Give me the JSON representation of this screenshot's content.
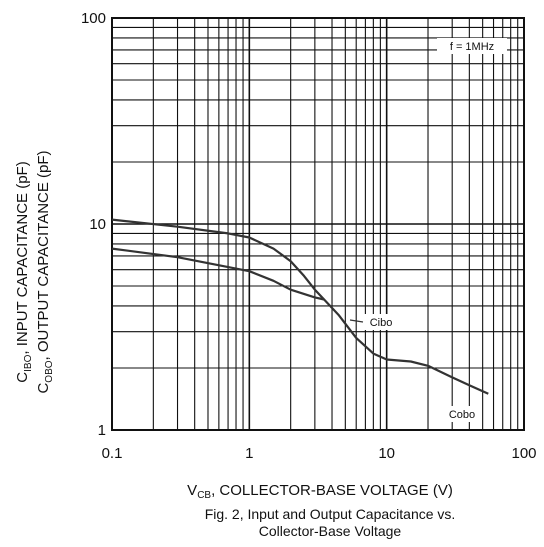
{
  "chart_data": {
    "type": "line",
    "x_scale": "log",
    "y_scale": "log",
    "xlim": [
      0.1,
      100
    ],
    "ylim": [
      1,
      100
    ],
    "x_tick_labels": [
      "0.1",
      "1",
      "10",
      "100"
    ],
    "y_tick_labels": [
      "1",
      "10",
      "100"
    ],
    "ylabel": {
      "line1": {
        "prefix": "C",
        "sub": "IBO",
        "suffix": ", INPUT CAPACITANCE (pF)"
      },
      "line2": {
        "prefix": "C",
        "sub": "OBO",
        "suffix": ", OUTPUT CAPACITANCE (pF)"
      }
    },
    "xlabel": {
      "prefix": "V",
      "sub": "CB",
      "suffix": ", COLLECTOR-BASE VOLTAGE (V)"
    },
    "caption": [
      "Fig. 2, Input and Output Capacitance vs.",
      "Collector-Base Voltage"
    ],
    "annotation": "f = 1MHz",
    "grid": true,
    "series": [
      {
        "name": "Cibo",
        "x": [
          0.1,
          0.3,
          0.7,
          1.0,
          1.5,
          2.0,
          2.5,
          3.0,
          3.5,
          4.5,
          6.0,
          8.0,
          10,
          15,
          20,
          30,
          40,
          55
        ],
        "y": [
          10.5,
          9.7,
          9.0,
          8.6,
          7.6,
          6.6,
          5.6,
          4.8,
          4.3,
          3.6,
          2.8,
          2.35,
          2.2,
          2.15,
          2.05,
          1.8,
          1.65,
          1.5
        ]
      },
      {
        "name": "Cobo",
        "x": [
          0.1,
          0.3,
          1.0,
          1.5,
          2.0,
          3.0,
          3.5
        ],
        "y": [
          7.6,
          6.9,
          5.9,
          5.3,
          4.8,
          4.4,
          4.3
        ]
      }
    ],
    "series_labels": [
      "Cibo",
      "Cobo"
    ]
  }
}
